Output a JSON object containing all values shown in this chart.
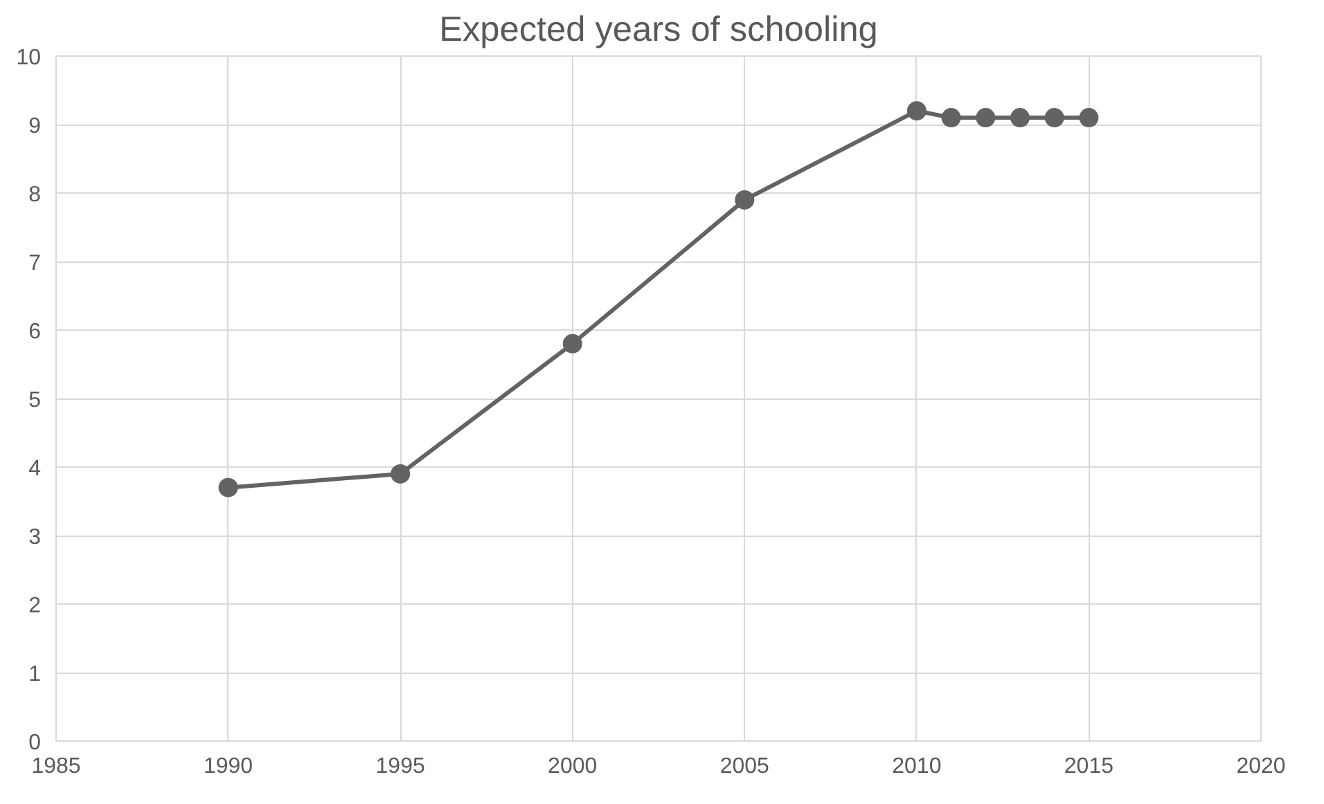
{
  "chart_data": {
    "type": "line",
    "title": "Expected years of schooling",
    "x": [
      1990,
      1995,
      2000,
      2005,
      2010,
      2011,
      2012,
      2013,
      2014,
      2015
    ],
    "series": [
      {
        "color": "#636363",
        "values": [
          3.7,
          3.9,
          5.8,
          7.9,
          9.2,
          9.1,
          9.1,
          9.1,
          9.1,
          9.1
        ]
      }
    ],
    "xlim": [
      1985,
      2020
    ],
    "xticks": [
      1985,
      1990,
      1995,
      2000,
      2005,
      2010,
      2015,
      2020
    ],
    "ylim": [
      0,
      10
    ],
    "yticks": [
      0,
      1,
      2,
      3,
      4,
      5,
      6,
      7,
      8,
      9,
      10
    ],
    "grid": true,
    "marker": "circle",
    "line_style": "solid"
  }
}
